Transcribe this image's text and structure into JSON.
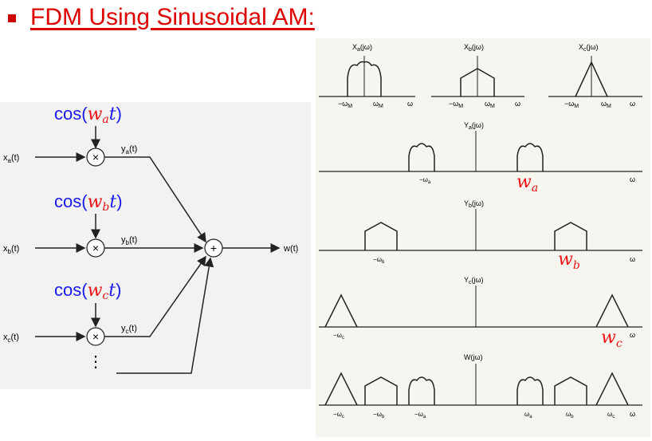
{
  "title": "FDM Using Sinusoidal AM:",
  "colors": {
    "title": "#dd0000",
    "cos_blue": "#1a1aee",
    "freq_red": "#ee1111"
  },
  "left": {
    "branches": [
      {
        "input": "x_a(t)",
        "input_base": "x",
        "input_sub": "a",
        "input_tail": "(t)",
        "cos_fn": "cos(",
        "cos_w": "w",
        "cos_sub": "a",
        "cos_t": "t",
        "cos_close": ")",
        "prod": "y_a(t)",
        "prod_base": "y",
        "prod_sub": "a",
        "prod_tail": "(t)"
      },
      {
        "input": "x_b(t)",
        "input_base": "x",
        "input_sub": "b",
        "input_tail": "(t)",
        "cos_fn": "cos(",
        "cos_w": "w",
        "cos_sub": "b",
        "cos_t": "t",
        "cos_close": ")",
        "prod": "y_b(t)",
        "prod_base": "y",
        "prod_sub": "b",
        "prod_tail": "(t)"
      },
      {
        "input": "x_c(t)",
        "input_base": "x",
        "input_sub": "c",
        "input_tail": "(t)",
        "cos_fn": "cos(",
        "cos_w": "w",
        "cos_sub": "c",
        "cos_t": "t",
        "cos_close": ")",
        "prod": "y_c(t)",
        "prod_base": "y",
        "prod_sub": "c",
        "prod_tail": "(t)"
      }
    ],
    "multiplier_symbol": "×",
    "adder_symbol": "+",
    "output": "w(t)",
    "ellipsis": "⋮"
  },
  "spectra": {
    "inputs": [
      {
        "label": "X_a(jω)",
        "base": "X",
        "sub": "a",
        "tail": "(jω)",
        "shape": "rounded-hump",
        "neg": "−ω",
        "pos": "ω",
        "sub_m": "M",
        "axis": "ω"
      },
      {
        "label": "X_b(jω)",
        "base": "X",
        "sub": "b",
        "tail": "(jω)",
        "shape": "flat-peak",
        "neg": "−ω",
        "pos": "ω",
        "sub_m": "M",
        "axis": "ω"
      },
      {
        "label": "X_c(jω)",
        "base": "X",
        "sub": "c",
        "tail": "(jω)",
        "shape": "triangle",
        "neg": "−ω",
        "pos": "ω",
        "sub_m": "M",
        "axis": "ω"
      }
    ],
    "rows": [
      {
        "label": "Y_a(jω)",
        "base": "Y",
        "sub": "a",
        "tail": "(jω)",
        "neg_label": "−ω",
        "neg_sub": "a",
        "carrier_w": "w",
        "carrier_sub": "a",
        "axis": "ω",
        "shape": "rounded-hump"
      },
      {
        "label": "Y_b(jω)",
        "base": "Y",
        "sub": "b",
        "tail": "(jω)",
        "neg_label": "−ω",
        "neg_sub": "b",
        "carrier_w": "w",
        "carrier_sub": "b",
        "axis": "ω",
        "shape": "flat-peak"
      },
      {
        "label": "Y_c(jω)",
        "base": "Y",
        "sub": "c",
        "tail": "(jω)",
        "neg_label": "−ω",
        "neg_sub": "c",
        "carrier_w": "w",
        "carrier_sub": "c",
        "axis": "ω",
        "shape": "triangle"
      }
    ],
    "composite": {
      "label": "W(jω)",
      "ticks": [
        {
          "text": "−ω",
          "sub": "c"
        },
        {
          "text": "−ω",
          "sub": "b"
        },
        {
          "text": "−ω",
          "sub": "a"
        },
        {
          "text": "ω",
          "sub": "a"
        },
        {
          "text": "ω",
          "sub": "b"
        },
        {
          "text": "ω",
          "sub": "c"
        }
      ],
      "axis": "ω"
    }
  }
}
